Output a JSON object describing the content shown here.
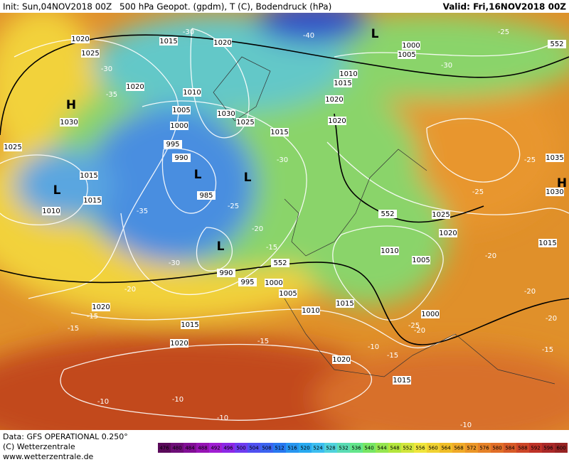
{
  "header": {
    "init": "Init: Sun,04NOV2018 00Z",
    "title": "500 hPa Geopot. (gpdm), T (C), Bodendruck (hPa)",
    "valid": "Valid: Fri,16NOV2018 00Z"
  },
  "footer": {
    "data": "Data: GFS OPERATIONAL 0.250°",
    "copyright": "(C) Wetterzentrale",
    "url": "www.wetterzentrale.de"
  },
  "colorbar": {
    "labels": [
      476,
      480,
      484,
      488,
      492,
      496,
      500,
      504,
      508,
      512,
      516,
      520,
      524,
      528,
      532,
      536,
      540,
      544,
      548,
      552,
      556,
      560,
      564,
      568,
      572,
      576,
      580,
      584,
      588,
      592,
      596,
      600
    ]
  },
  "pressure_labels": [
    "1020",
    "1025",
    "1015",
    "1020",
    "1020",
    "1010",
    "1005",
    "1000",
    "995",
    "990",
    "985",
    "1030",
    "1025",
    "1015",
    "1020",
    "1015",
    "1010",
    "1005",
    "1000",
    "1020",
    "1025",
    "1015",
    "1015",
    "1010",
    "1030",
    "1025",
    "1020",
    "1010",
    "1005",
    "1000",
    "1015",
    "1010",
    "1005",
    "1000",
    "995",
    "990",
    "1020",
    "1015",
    "1020",
    "1020",
    "1015",
    "1035",
    "1030",
    "1015"
  ],
  "centers": [
    "H",
    "L",
    "L",
    "L",
    "L",
    "L",
    "H"
  ],
  "temperature_labels": [
    "-30",
    "-40",
    "-25",
    "-30",
    "-30",
    "-35",
    "-30",
    "-25",
    "-20",
    "-35",
    "-15",
    "-30",
    "-20",
    "-15",
    "-15",
    "-10",
    "-15",
    "-20",
    "-25",
    "-20",
    "-20",
    "-20",
    "-15",
    "-10",
    "-10",
    "-10",
    "-10",
    "-25",
    "-25",
    "-15"
  ],
  "geopotential_labels": [
    "552",
    "552",
    "552"
  ]
}
